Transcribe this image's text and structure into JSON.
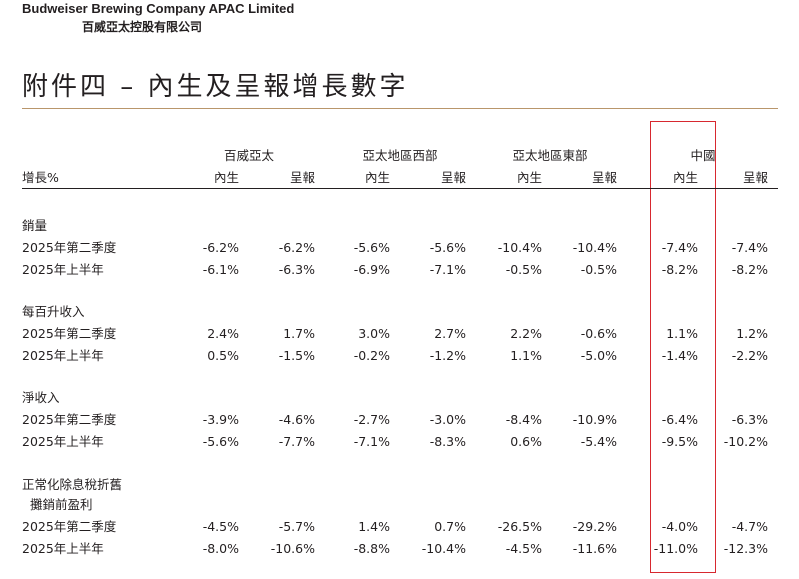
{
  "header": {
    "company_en": "Budweiser Brewing Company APAC Limited",
    "company_zh": "百威亞太控股有限公司"
  },
  "title": "附件四 – 內生及呈報增長數字",
  "table": {
    "row_header": "增長%",
    "groups": [
      "百威亞太",
      "亞太地區西部",
      "亞太地區東部",
      "中國"
    ],
    "sub_headers": [
      "內生",
      "呈報"
    ],
    "sections": [
      {
        "label": "銷量",
        "rows": [
          {
            "label": "2025年第二季度",
            "values": [
              "-6.2%",
              "-6.2%",
              "-5.6%",
              "-5.6%",
              "-10.4%",
              "-10.4%",
              "-7.4%",
              "-7.4%"
            ]
          },
          {
            "label": "2025年上半年",
            "values": [
              "-6.1%",
              "-6.3%",
              "-6.9%",
              "-7.1%",
              "-0.5%",
              "-0.5%",
              "-8.2%",
              "-8.2%"
            ]
          }
        ]
      },
      {
        "label": "每百升收入",
        "rows": [
          {
            "label": "2025年第二季度",
            "values": [
              "2.4%",
              "1.7%",
              "3.0%",
              "2.7%",
              "2.2%",
              "-0.6%",
              "1.1%",
              "1.2%"
            ]
          },
          {
            "label": "2025年上半年",
            "values": [
              "0.5%",
              "-1.5%",
              "-0.2%",
              "-1.2%",
              "1.1%",
              "-5.0%",
              "-1.4%",
              "-2.2%"
            ]
          }
        ]
      },
      {
        "label": "淨收入",
        "rows": [
          {
            "label": "2025年第二季度",
            "values": [
              "-3.9%",
              "-4.6%",
              "-2.7%",
              "-3.0%",
              "-8.4%",
              "-10.9%",
              "-6.4%",
              "-6.3%"
            ]
          },
          {
            "label": "2025年上半年",
            "values": [
              "-5.6%",
              "-7.7%",
              "-7.1%",
              "-8.3%",
              "0.6%",
              "-5.4%",
              "-9.5%",
              "-10.2%"
            ]
          }
        ]
      },
      {
        "label": "正常化除息稅折舊",
        "label2": "攤銷前盈利",
        "rows": [
          {
            "label": "2025年第二季度",
            "values": [
              "-4.5%",
              "-5.7%",
              "1.4%",
              "0.7%",
              "-26.5%",
              "-29.2%",
              "-4.0%",
              "-4.7%"
            ]
          },
          {
            "label": "2025年上半年",
            "values": [
              "-8.0%",
              "-10.6%",
              "-8.8%",
              "-10.4%",
              "-4.5%",
              "-11.6%",
              "-11.0%",
              "-12.3%"
            ]
          }
        ]
      }
    ]
  },
  "colors": {
    "rule": "#b9966b",
    "highlight": "#d7282f",
    "text": "#231f20"
  }
}
